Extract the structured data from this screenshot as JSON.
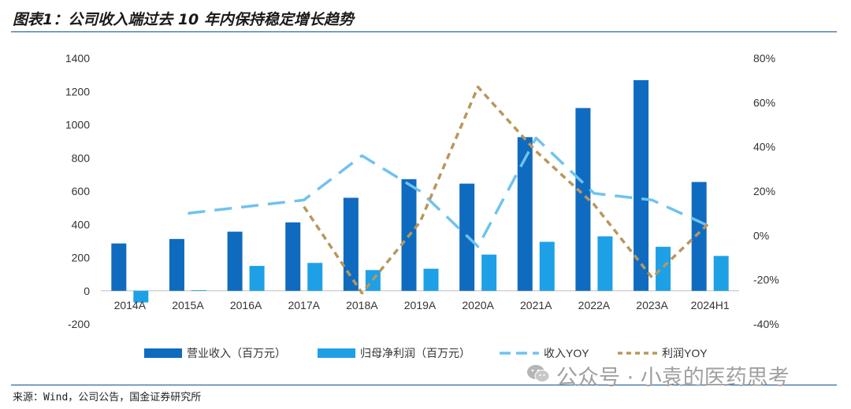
{
  "title": "图表1：公司收入端过去 10 年内保持稳定增长趋势",
  "source": "来源：Wind，公司公告，国金证券研究所",
  "watermark": "公众号 · 小袁的医药思考",
  "colors": {
    "revenue": "#0f6bbf",
    "profit": "#1ea0e6",
    "revenue_yoy": "#6fc3ee",
    "profit_yoy": "#b9975b",
    "rule": "#0f4c8a"
  },
  "chart_data": {
    "type": "bar",
    "categories": [
      "2014A",
      "2015A",
      "2016A",
      "2017A",
      "2018A",
      "2019A",
      "2020A",
      "2021A",
      "2022A",
      "2023A",
      "2024H1"
    ],
    "y_left": {
      "min": -200,
      "max": 1400,
      "ticks": [
        "-200",
        "0",
        "200",
        "400",
        "600",
        "800",
        "1000",
        "1200",
        "1400"
      ]
    },
    "y_right": {
      "min": -40,
      "max": 80,
      "ticks": [
        "-40%",
        "-20%",
        "0%",
        "20%",
        "40%",
        "60%",
        "80%"
      ]
    },
    "series": [
      {
        "name": "营业收入（百万元）",
        "type": "bar",
        "axis": "left",
        "values": [
          285,
          312,
          356,
          412,
          560,
          672,
          645,
          925,
          1100,
          1268,
          655
        ]
      },
      {
        "name": "归母净利润（百万元）",
        "type": "bar",
        "axis": "left",
        "values": [
          -70,
          4,
          150,
          168,
          125,
          133,
          218,
          295,
          328,
          265,
          210
        ]
      },
      {
        "name": "收入YOY",
        "type": "line",
        "dash": "long",
        "axis": "right",
        "values": [
          null,
          10,
          13,
          16,
          36,
          20,
          -5,
          44,
          19,
          16,
          4
        ]
      },
      {
        "name": "利润YOY",
        "type": "line",
        "dash": "short",
        "axis": "right",
        "values": [
          null,
          null,
          null,
          13,
          -26,
          6,
          67,
          38,
          14,
          -19,
          6
        ]
      }
    ]
  }
}
